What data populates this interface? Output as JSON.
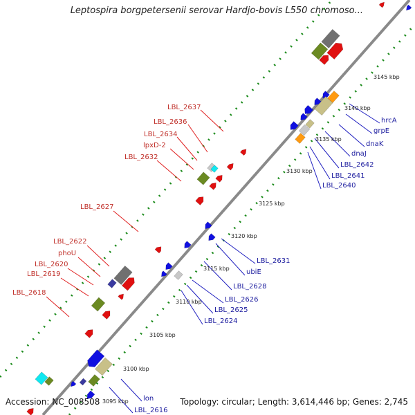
{
  "title": "Leptospira borgpetersenii serovar Hardjo-bovis L550 chromoso...",
  "footer": {
    "accession": "Accession: NC_008508",
    "topology": "Topology: circular; Length: 3,614,446 bp; Genes: 2,745"
  },
  "scale_labels": [
    "3095 kbp",
    "3100 kbp",
    "3105 kbp",
    "3110 kbp",
    "3115 kbp",
    "3120 kbp",
    "3125 kbp",
    "3130 kbp",
    "3135 kbp",
    "3140 kbp",
    "3145 kbp"
  ],
  "red_labels": [
    "LBL_2637",
    "LBL_2636",
    "LBL_2634",
    "lpxD-2",
    "LBL_2632",
    "LBL_2627",
    "LBL_2622",
    "phoU",
    "LBL_2620",
    "LBL_2619",
    "LBL_2618"
  ],
  "blue_labels": [
    "hrcA",
    "grpE",
    "dnaK",
    "dnaJ",
    "LBL_2642",
    "LBL_2641",
    "LBL_2640",
    "LBL_2631",
    "ubiE",
    "LBL_2628",
    "LBL_2626",
    "LBL_2625",
    "LBL_2624",
    "lon",
    "LBL_2616"
  ],
  "colors": {
    "forward": "#e01010",
    "reverse": "#1010e0",
    "olive": "#6b8a22",
    "dark_gray": "#707070",
    "light_gray": "#c8c8c8",
    "khaki": "#c8c088",
    "orange": "#ff9a10",
    "cyan": "#10e8f0",
    "purple": "#3a3aa0",
    "backbone": "#8a8a8a",
    "tick_green": "#1a8a1a"
  }
}
